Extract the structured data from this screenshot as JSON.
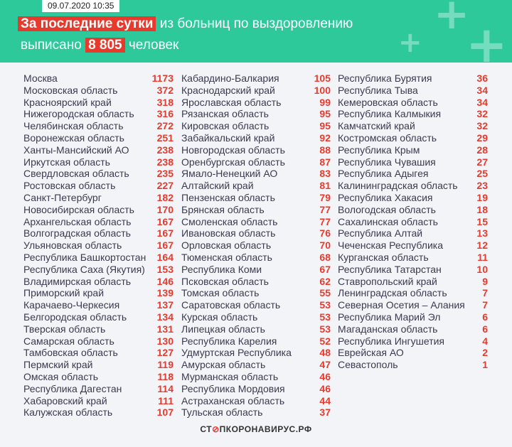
{
  "header": {
    "date": "09.07.2020 10:35",
    "title_highlight": "За последние сутки",
    "title_rest": " из больниц по выздоровлению",
    "line2_prefix": "выписано ",
    "line2_number": "8 805",
    "line2_suffix": " человек"
  },
  "columns": [
    [
      {
        "name": "Москва",
        "value": "1173"
      },
      {
        "name": "Московская область",
        "value": "372"
      },
      {
        "name": "Красноярский край",
        "value": "318"
      },
      {
        "name": "Нижегородская область",
        "value": "316"
      },
      {
        "name": "Челябинская область",
        "value": "272"
      },
      {
        "name": "Воронежская область",
        "value": "251"
      },
      {
        "name": "Ханты-Мансийский АО",
        "value": "238"
      },
      {
        "name": "Иркутская область",
        "value": "238"
      },
      {
        "name": "Свердловская область",
        "value": "235"
      },
      {
        "name": "Ростовская область",
        "value": "227"
      },
      {
        "name": "Санкт-Петербург",
        "value": "182"
      },
      {
        "name": "Новосибирская область",
        "value": "170"
      },
      {
        "name": "Архангельская область",
        "value": "167"
      },
      {
        "name": "Волгоградская область",
        "value": "167"
      },
      {
        "name": "Ульяновская область",
        "value": "167"
      },
      {
        "name": "Республика Башкортостан",
        "value": "164"
      },
      {
        "name": "Республика Саха (Якутия)",
        "value": "153"
      },
      {
        "name": "Владимирская область",
        "value": "146"
      },
      {
        "name": "Приморский край",
        "value": "139"
      },
      {
        "name": "Карачаево-Черкесия",
        "value": "137"
      },
      {
        "name": "Белгородская область",
        "value": "134"
      },
      {
        "name": "Тверская область",
        "value": "131"
      },
      {
        "name": "Самарская область",
        "value": "130"
      },
      {
        "name": "Тамбовская область",
        "value": "127"
      },
      {
        "name": "Пермский край",
        "value": "119"
      },
      {
        "name": "Омская область",
        "value": "118"
      },
      {
        "name": "Республика Дагестан",
        "value": "114"
      },
      {
        "name": "Хабаровский край",
        "value": "111"
      },
      {
        "name": "Калужская область",
        "value": "107"
      }
    ],
    [
      {
        "name": "Кабардино-Балкария",
        "value": "105"
      },
      {
        "name": "Краснодарский край",
        "value": "100"
      },
      {
        "name": "Ярославская область",
        "value": "99"
      },
      {
        "name": "Рязанская область",
        "value": "95"
      },
      {
        "name": "Кировская область",
        "value": "95"
      },
      {
        "name": "Забайкальский край",
        "value": "92"
      },
      {
        "name": "Новгородская область",
        "value": "88"
      },
      {
        "name": "Оренбургская область",
        "value": "87"
      },
      {
        "name": "Ямало-Ненецкий АО",
        "value": "83"
      },
      {
        "name": "Алтайский край",
        "value": "81"
      },
      {
        "name": "Пензенская область",
        "value": "79"
      },
      {
        "name": "Брянская область",
        "value": "77"
      },
      {
        "name": "Смоленская область",
        "value": "77"
      },
      {
        "name": "Ивановская область",
        "value": "76"
      },
      {
        "name": "Орловская область",
        "value": "70"
      },
      {
        "name": "Тюменская область",
        "value": "68"
      },
      {
        "name": "Республика Коми",
        "value": "67"
      },
      {
        "name": "Псковская область",
        "value": "62"
      },
      {
        "name": "Томская область",
        "value": "55"
      },
      {
        "name": "Саратовская область",
        "value": "53"
      },
      {
        "name": "Курская область",
        "value": "53"
      },
      {
        "name": "Липецкая область",
        "value": "53"
      },
      {
        "name": "Республика Карелия",
        "value": "52"
      },
      {
        "name": "Удмуртская Республика",
        "value": "48"
      },
      {
        "name": "Амурская область",
        "value": "47"
      },
      {
        "name": "Мурманская область",
        "value": "46"
      },
      {
        "name": "Республика Мордовия",
        "value": "46"
      },
      {
        "name": "Астраханская область",
        "value": "44"
      },
      {
        "name": "Тульская область",
        "value": "37"
      }
    ],
    [
      {
        "name": "Республика Бурятия",
        "value": "36"
      },
      {
        "name": "Республика Тыва",
        "value": "34"
      },
      {
        "name": "Кемеровская область",
        "value": "34"
      },
      {
        "name": "Республика Калмыкия",
        "value": "32"
      },
      {
        "name": "Камчатский край",
        "value": "32"
      },
      {
        "name": "Костромская область",
        "value": "29"
      },
      {
        "name": "Республика Крым",
        "value": "28"
      },
      {
        "name": "Республика Чувашия",
        "value": "27"
      },
      {
        "name": "Республика Адыгея",
        "value": "25"
      },
      {
        "name": "Калининградская область",
        "value": "23"
      },
      {
        "name": "Республика Хакасия",
        "value": "19"
      },
      {
        "name": "Вологодская область",
        "value": "18"
      },
      {
        "name": "Сахалинская область",
        "value": "15"
      },
      {
        "name": "Республика Алтай",
        "value": "13"
      },
      {
        "name": "Чеченская Республика",
        "value": "12"
      },
      {
        "name": "Курганская область",
        "value": "11"
      },
      {
        "name": "Республика Татарстан",
        "value": "10"
      },
      {
        "name": "Ставропольский край",
        "value": "9"
      },
      {
        "name": "Ленинградская область",
        "value": "7"
      },
      {
        "name": "Северная Осетия – Алания",
        "value": "7"
      },
      {
        "name": "Республика Марий Эл",
        "value": "6"
      },
      {
        "name": "Магаданская область",
        "value": "6"
      },
      {
        "name": "Республика Ингушетия",
        "value": "4"
      },
      {
        "name": "Еврейская АО",
        "value": "2"
      },
      {
        "name": "Севастополь",
        "value": "1"
      }
    ]
  ],
  "footer": {
    "logo_prefix": "СТ",
    "logo_stop": "⊘",
    "logo_suffix": "ПКОРОНАВИРУС.РФ"
  },
  "colors": {
    "header_green": "#2dc99b",
    "accent_red": "#e8392d",
    "text_dark": "#3a3a4f"
  }
}
